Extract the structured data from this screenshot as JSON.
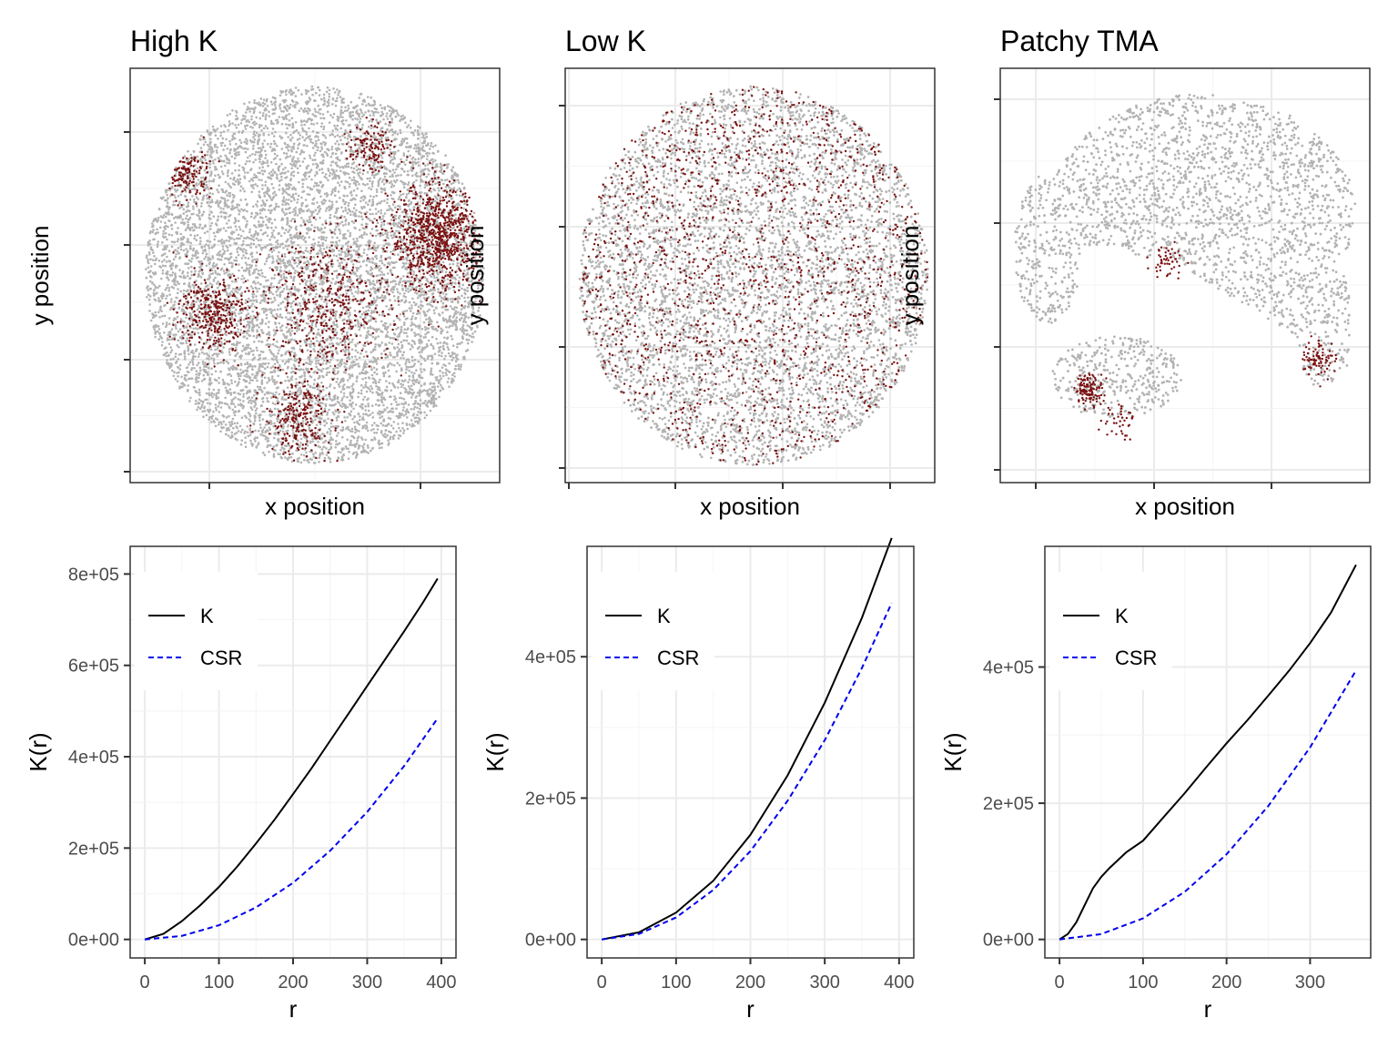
{
  "colors": {
    "background_points": "#b3b3b3",
    "highlight_points": "#7a1010",
    "K_line": "#000000",
    "CSR_line": "#0000ee",
    "grid_major": "#ebebeb",
    "grid_minor": "#f4f4f4",
    "panel_border": "#333333"
  },
  "chart_data": [
    {
      "type": "scatter",
      "title": "High K",
      "xlabel": "x position",
      "ylabel": "y position",
      "tick_labels_shown": false,
      "shape": "disc",
      "highlight_clusters": [
        {
          "cx": 0.86,
          "cy": 0.6,
          "r": 0.14,
          "n": 900
        },
        {
          "cx": 0.54,
          "cy": 0.42,
          "r": 0.18,
          "n": 450
        },
        {
          "cx": 0.2,
          "cy": 0.4,
          "r": 0.1,
          "n": 350
        },
        {
          "cx": 0.12,
          "cy": 0.77,
          "r": 0.07,
          "n": 160
        },
        {
          "cx": 0.45,
          "cy": 0.12,
          "r": 0.1,
          "n": 250
        },
        {
          "cx": 0.66,
          "cy": 0.84,
          "r": 0.06,
          "n": 120
        }
      ]
    },
    {
      "type": "scatter",
      "title": "Low K",
      "xlabel": "x position",
      "ylabel": "y position",
      "tick_labels_shown": false,
      "shape": "disc",
      "highlight_clusters": [
        {
          "cx": 0.5,
          "cy": 0.5,
          "r": 0.5,
          "n": 1500
        }
      ]
    },
    {
      "type": "scatter",
      "title": "Patchy TMA",
      "xlabel": "x position",
      "ylabel": "y position",
      "tick_labels_shown": false,
      "shape": "patchy",
      "highlight_clusters": [
        {
          "cx": 0.22,
          "cy": 0.2,
          "r": 0.04,
          "n": 120
        },
        {
          "cx": 0.89,
          "cy": 0.28,
          "r": 0.05,
          "n": 80
        },
        {
          "cx": 0.45,
          "cy": 0.54,
          "r": 0.05,
          "n": 50
        },
        {
          "cx": 0.3,
          "cy": 0.12,
          "r": 0.05,
          "n": 40
        }
      ]
    },
    {
      "type": "line",
      "xlabel": "r",
      "ylabel": "K(r)",
      "xlim": [
        0,
        400
      ],
      "ylim": [
        0,
        820000
      ],
      "x_ticks": [
        0,
        100,
        200,
        300,
        400
      ],
      "x_tick_labels": [
        "0",
        "100",
        "200",
        "300",
        "400"
      ],
      "y_ticks": [
        0,
        200000,
        400000,
        600000,
        800000
      ],
      "y_tick_labels": [
        "0e+00",
        "2e+05",
        "4e+05",
        "6e+05",
        "8e+05"
      ],
      "legend": {
        "placement": "top-left",
        "entries": [
          "K",
          "CSR"
        ]
      },
      "series": [
        {
          "name": "K",
          "style": "solid",
          "x": [
            0,
            25,
            50,
            75,
            100,
            125,
            150,
            175,
            200,
            225,
            250,
            275,
            300,
            325,
            350,
            375,
            395
          ],
          "y": [
            0,
            12000,
            40000,
            75000,
            115000,
            160000,
            210000,
            262000,
            318000,
            375000,
            435000,
            495000,
            555000,
            615000,
            675000,
            737000,
            790000
          ]
        },
        {
          "name": "CSR",
          "style": "dashed",
          "x": [
            0,
            50,
            100,
            150,
            200,
            250,
            300,
            350,
            395
          ],
          "y": [
            0,
            7700,
            31000,
            70000,
            124000,
            194000,
            279000,
            380000,
            484000
          ]
        }
      ]
    },
    {
      "type": "line",
      "xlabel": "r",
      "ylabel": "K(r)",
      "xlim": [
        0,
        400
      ],
      "ylim": [
        0,
        530000
      ],
      "x_ticks": [
        0,
        100,
        200,
        300,
        400
      ],
      "x_tick_labels": [
        "0",
        "100",
        "200",
        "300",
        "400"
      ],
      "y_ticks": [
        0,
        200000,
        400000
      ],
      "y_tick_labels": [
        "0e+00",
        "2e+05",
        "4e+05"
      ],
      "legend": {
        "placement": "top-left",
        "entries": [
          "K",
          "CSR"
        ]
      },
      "series": [
        {
          "name": "K",
          "style": "solid",
          "x": [
            0,
            50,
            100,
            150,
            200,
            250,
            300,
            350,
            390
          ],
          "y": [
            0,
            10000,
            38000,
            83000,
            148000,
            232000,
            335000,
            455000,
            568000
          ]
        },
        {
          "name": "CSR",
          "style": "dashed",
          "x": [
            0,
            50,
            100,
            150,
            200,
            250,
            300,
            350,
            390
          ],
          "y": [
            0,
            7800,
            31000,
            70000,
            125000,
            196000,
            282000,
            384000,
            476000
          ]
        }
      ]
    },
    {
      "type": "line",
      "xlabel": "r",
      "ylabel": "K(r)",
      "xlim": [
        0,
        355
      ],
      "ylim": [
        0,
        550000
      ],
      "x_ticks": [
        0,
        100,
        200,
        300
      ],
      "x_tick_labels": [
        "0",
        "100",
        "200",
        "300"
      ],
      "y_ticks": [
        0,
        200000,
        400000
      ],
      "y_tick_labels": [
        "0e+00",
        "2e+05",
        "4e+05"
      ],
      "legend": {
        "placement": "top-left",
        "entries": [
          "K",
          "CSR"
        ]
      },
      "series": [
        {
          "name": "K",
          "style": "solid",
          "x": [
            0,
            10,
            20,
            30,
            40,
            50,
            60,
            80,
            100,
            125,
            150,
            175,
            200,
            225,
            250,
            275,
            300,
            325,
            355
          ],
          "y": [
            0,
            8000,
            25000,
            50000,
            75000,
            92000,
            105000,
            128000,
            145000,
            180000,
            215000,
            252000,
            288000,
            322000,
            358000,
            395000,
            435000,
            480000,
            550000
          ]
        },
        {
          "name": "CSR",
          "style": "dashed",
          "x": [
            0,
            50,
            100,
            150,
            200,
            250,
            300,
            355
          ],
          "y": [
            0,
            7800,
            31000,
            70000,
            125000,
            196000,
            282000,
            395000
          ]
        }
      ]
    }
  ]
}
